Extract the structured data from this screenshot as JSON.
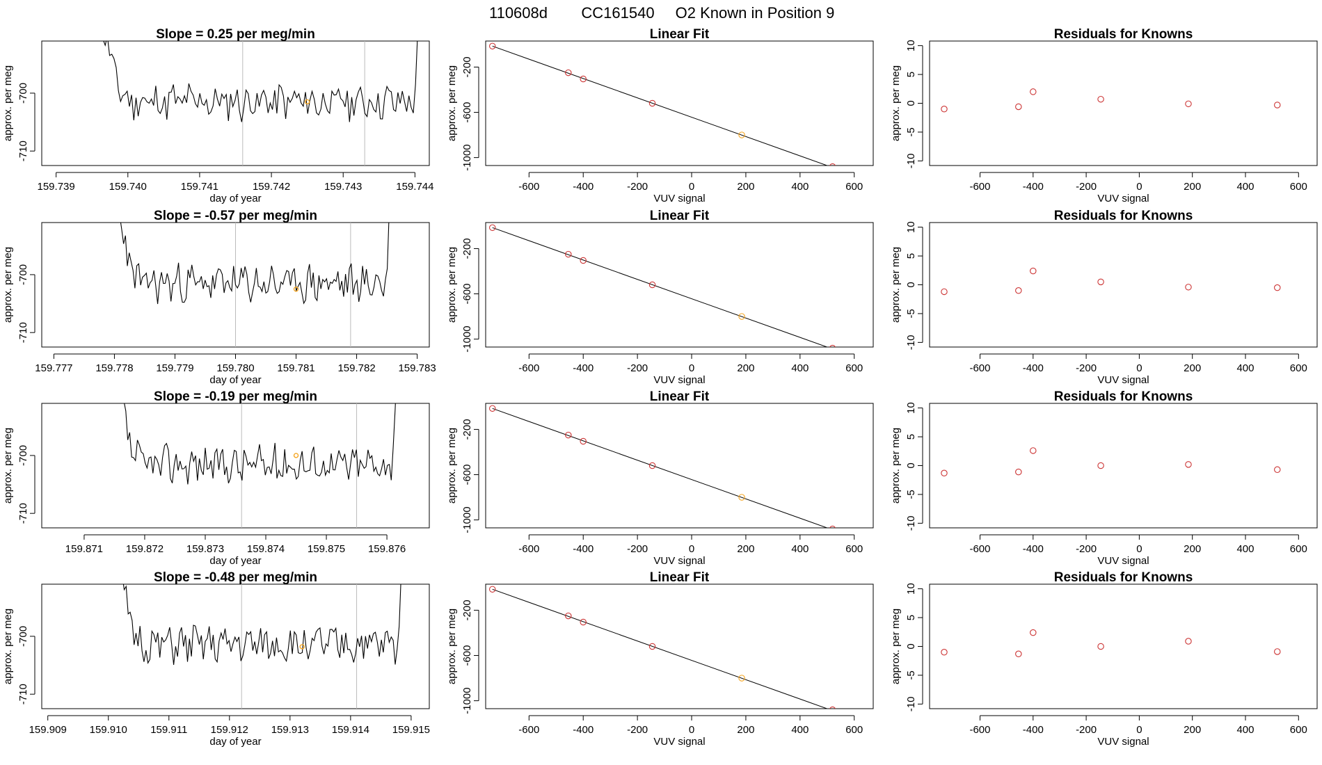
{
  "figure_title": [
    "110608d",
    "CC161540",
    "O2 Known in Position  9"
  ],
  "colors": {
    "line": "#000000",
    "marker_orange": "#f5a623",
    "marker_red": "#cc3333",
    "guide": "#bbbbbb"
  },
  "chart_data": [
    {
      "type": "line",
      "panel": "time-1",
      "title": "Slope =  0.25  per meg/min",
      "xlabel": "day of year",
      "ylabel": "approx. per meg",
      "xticks": [
        "159.739",
        "159.740",
        "159.741",
        "159.742",
        "159.743",
        "159.744"
      ],
      "xtick_values": [
        159.739,
        159.74,
        159.741,
        159.742,
        159.743,
        159.744
      ],
      "xlim": [
        159.7388,
        159.7442
      ],
      "yticks": [
        "-700",
        "-710"
      ],
      "ytick_values": [
        -700,
        -710
      ],
      "ylim": [
        -712.5,
        -691
      ],
      "series_start": 159.7395,
      "series_end": 159.7441,
      "seed": 11,
      "vlines": [
        159.7416,
        159.7433
      ],
      "highlight": {
        "x": 159.7425,
        "y": -701.5
      }
    },
    {
      "type": "scatter",
      "panel": "fit-1",
      "title": "Linear Fit",
      "xlabel": "VUV signal",
      "ylabel": "approx. per meg",
      "xticks": [
        "-600",
        "-400",
        "-200",
        "0",
        "200",
        "400",
        "600"
      ],
      "xtick_values": [
        -600,
        -400,
        -200,
        0,
        200,
        400,
        600
      ],
      "yticks": [
        "-200",
        "-600",
        "-1000"
      ],
      "ytick_values": [
        -200,
        -600,
        -1000
      ],
      "xlim": [
        -760,
        670
      ],
      "ylim": [
        -1070,
        30
      ],
      "x": [
        -735,
        -455,
        -400,
        -145,
        185,
        520
      ],
      "y": [
        -15,
        -250,
        -305,
        -520,
        -800,
        -1080
      ],
      "highlight_index": 4,
      "fit_line": {
        "x": [
          -735,
          640
        ],
        "y": [
          -15,
          -1190
        ]
      }
    },
    {
      "type": "scatter",
      "panel": "resid-1",
      "title": "Residuals for Knowns",
      "xlabel": "VUV signal",
      "ylabel": "approx. per meg",
      "xticks": [
        "-600",
        "-400",
        "-200",
        "0",
        "200",
        "400",
        "600"
      ],
      "xtick_values": [
        -600,
        -400,
        -200,
        0,
        200,
        400,
        600
      ],
      "yticks": [
        "-10",
        "-5",
        "0",
        "5",
        "10"
      ],
      "ytick_values": [
        -10,
        -5,
        0,
        5,
        10
      ],
      "xlim": [
        -790,
        670
      ],
      "ylim": [
        -10.8,
        10.8
      ],
      "x": [
        -735,
        -455,
        -400,
        -145,
        185,
        520
      ],
      "y": [
        -1.0,
        -0.6,
        2.0,
        0.7,
        -0.1,
        -0.3
      ]
    },
    {
      "type": "line",
      "panel": "time-2",
      "title": "Slope =  -0.57  per meg/min",
      "xlabel": "day of year",
      "ylabel": "approx. per meg",
      "xticks": [
        "159.777",
        "159.778",
        "159.779",
        "159.780",
        "159.781",
        "159.782",
        "159.783"
      ],
      "xtick_values": [
        159.777,
        159.778,
        159.779,
        159.78,
        159.781,
        159.782,
        159.783
      ],
      "xlim": [
        159.7768,
        159.7832
      ],
      "yticks": [
        "-700",
        "-710"
      ],
      "ytick_values": [
        -700,
        -710
      ],
      "ylim": [
        -712.5,
        -691
      ],
      "series_start": 159.7779,
      "series_end": 159.7826,
      "seed": 23,
      "vlines": [
        159.78,
        159.7819
      ],
      "highlight": {
        "x": 159.781,
        "y": -702.5
      }
    },
    {
      "type": "scatter",
      "panel": "fit-2",
      "title": "Linear Fit",
      "xlabel": "VUV signal",
      "ylabel": "approx. per meg",
      "xticks": [
        "-600",
        "-400",
        "-200",
        "0",
        "200",
        "400",
        "600"
      ],
      "xtick_values": [
        -600,
        -400,
        -200,
        0,
        200,
        400,
        600
      ],
      "yticks": [
        "-200",
        "-600",
        "-1000"
      ],
      "ytick_values": [
        -200,
        -600,
        -1000
      ],
      "xlim": [
        -760,
        670
      ],
      "ylim": [
        -1070,
        30
      ],
      "x": [
        -735,
        -455,
        -400,
        -145,
        185,
        520
      ],
      "y": [
        -15,
        -250,
        -305,
        -520,
        -800,
        -1080
      ],
      "highlight_index": 4,
      "fit_line": {
        "x": [
          -735,
          640
        ],
        "y": [
          -15,
          -1190
        ]
      }
    },
    {
      "type": "scatter",
      "panel": "resid-2",
      "title": "Residuals for Knowns",
      "xlabel": "VUV signal",
      "ylabel": "approx. per meg",
      "xticks": [
        "-600",
        "-400",
        "-200",
        "0",
        "200",
        "400",
        "600"
      ],
      "xtick_values": [
        -600,
        -400,
        -200,
        0,
        200,
        400,
        600
      ],
      "yticks": [
        "-10",
        "-5",
        "0",
        "5",
        "10"
      ],
      "ytick_values": [
        -10,
        -5,
        0,
        5,
        10
      ],
      "xlim": [
        -790,
        670
      ],
      "ylim": [
        -10.8,
        10.8
      ],
      "x": [
        -735,
        -455,
        -400,
        -145,
        185,
        520
      ],
      "y": [
        -1.2,
        -1.0,
        2.4,
        0.5,
        -0.4,
        -0.5
      ]
    },
    {
      "type": "line",
      "panel": "time-3",
      "title": "Slope =  -0.19  per meg/min",
      "xlabel": "day of year",
      "ylabel": "approx. per meg",
      "xticks": [
        "159.871",
        "159.872",
        "159.873",
        "159.874",
        "159.875",
        "159.876"
      ],
      "xtick_values": [
        159.871,
        159.872,
        159.873,
        159.874,
        159.875,
        159.876
      ],
      "xlim": [
        159.8703,
        159.8767
      ],
      "yticks": [
        "-700",
        "-710"
      ],
      "ytick_values": [
        -700,
        -710
      ],
      "ylim": [
        -712.5,
        -691
      ],
      "series_start": 159.8714,
      "series_end": 159.8762,
      "seed": 37,
      "vlines": [
        159.8736,
        159.8755
      ],
      "highlight": {
        "x": 159.8745,
        "y": -700.0
      }
    },
    {
      "type": "scatter",
      "panel": "fit-3",
      "title": "Linear Fit",
      "xlabel": "VUV signal",
      "ylabel": "approx. per meg",
      "xticks": [
        "-600",
        "-400",
        "-200",
        "0",
        "200",
        "400",
        "600"
      ],
      "xtick_values": [
        -600,
        -400,
        -200,
        0,
        200,
        400,
        600
      ],
      "yticks": [
        "-200",
        "-600",
        "-1000"
      ],
      "ytick_values": [
        -200,
        -600,
        -1000
      ],
      "xlim": [
        -760,
        670
      ],
      "ylim": [
        -1070,
        30
      ],
      "x": [
        -735,
        -455,
        -400,
        -145,
        185,
        520
      ],
      "y": [
        -15,
        -250,
        -305,
        -520,
        -800,
        -1080
      ],
      "highlight_index": 4,
      "fit_line": {
        "x": [
          -735,
          640
        ],
        "y": [
          -15,
          -1190
        ]
      }
    },
    {
      "type": "scatter",
      "panel": "resid-3",
      "title": "Residuals for Knowns",
      "xlabel": "VUV signal",
      "ylabel": "approx. per meg",
      "xticks": [
        "-600",
        "-400",
        "-200",
        "0",
        "200",
        "400",
        "600"
      ],
      "xtick_values": [
        -600,
        -400,
        -200,
        0,
        200,
        400,
        600
      ],
      "yticks": [
        "-10",
        "-5",
        "0",
        "5",
        "10"
      ],
      "ytick_values": [
        -10,
        -5,
        0,
        5,
        10
      ],
      "xlim": [
        -790,
        670
      ],
      "ylim": [
        -10.8,
        10.8
      ],
      "x": [
        -735,
        -455,
        -400,
        -145,
        185,
        520
      ],
      "y": [
        -1.3,
        -1.1,
        2.6,
        0.0,
        0.2,
        -0.7
      ]
    },
    {
      "type": "line",
      "panel": "time-4",
      "title": "Slope =  -0.48  per meg/min",
      "xlabel": "day of year",
      "ylabel": "approx. per meg",
      "xticks": [
        "159.909",
        "159.910",
        "159.911",
        "159.912",
        "159.913",
        "159.914",
        "159.915"
      ],
      "xtick_values": [
        159.909,
        159.91,
        159.911,
        159.912,
        159.913,
        159.914,
        159.915
      ],
      "xlim": [
        159.9089,
        159.9153
      ],
      "yticks": [
        "-700",
        "-710"
      ],
      "ytick_values": [
        -700,
        -710
      ],
      "ylim": [
        -712.5,
        -691
      ],
      "series_start": 159.91,
      "series_end": 159.9149,
      "seed": 51,
      "vlines": [
        159.9122,
        159.9141
      ],
      "highlight": {
        "x": 159.9132,
        "y": -701.8
      }
    },
    {
      "type": "scatter",
      "panel": "fit-4",
      "title": "Linear Fit",
      "xlabel": "VUV signal",
      "ylabel": "approx. per meg",
      "xticks": [
        "-600",
        "-400",
        "-200",
        "0",
        "200",
        "400",
        "600"
      ],
      "xtick_values": [
        -600,
        -400,
        -200,
        0,
        200,
        400,
        600
      ],
      "yticks": [
        "-200",
        "-600",
        "-1000"
      ],
      "ytick_values": [
        -200,
        -600,
        -1000
      ],
      "xlim": [
        -760,
        670
      ],
      "ylim": [
        -1070,
        30
      ],
      "x": [
        -735,
        -455,
        -400,
        -145,
        185,
        520
      ],
      "y": [
        -15,
        -250,
        -305,
        -520,
        -800,
        -1080
      ],
      "highlight_index": 4,
      "fit_line": {
        "x": [
          -735,
          640
        ],
        "y": [
          -15,
          -1190
        ]
      }
    },
    {
      "type": "scatter",
      "panel": "resid-4",
      "title": "Residuals for Knowns",
      "xlabel": "VUV signal",
      "ylabel": "approx. per meg",
      "xticks": [
        "-600",
        "-400",
        "-200",
        "0",
        "200",
        "400",
        "600"
      ],
      "xtick_values": [
        -600,
        -400,
        -200,
        0,
        200,
        400,
        600
      ],
      "yticks": [
        "-10",
        "-5",
        "0",
        "5",
        "10"
      ],
      "ytick_values": [
        -10,
        -5,
        0,
        5,
        10
      ],
      "xlim": [
        -790,
        670
      ],
      "ylim": [
        -10.8,
        10.8
      ],
      "x": [
        -735,
        -455,
        -400,
        -145,
        185,
        520
      ],
      "y": [
        -1.0,
        -1.3,
        2.4,
        0.0,
        0.9,
        -0.9
      ]
    }
  ]
}
